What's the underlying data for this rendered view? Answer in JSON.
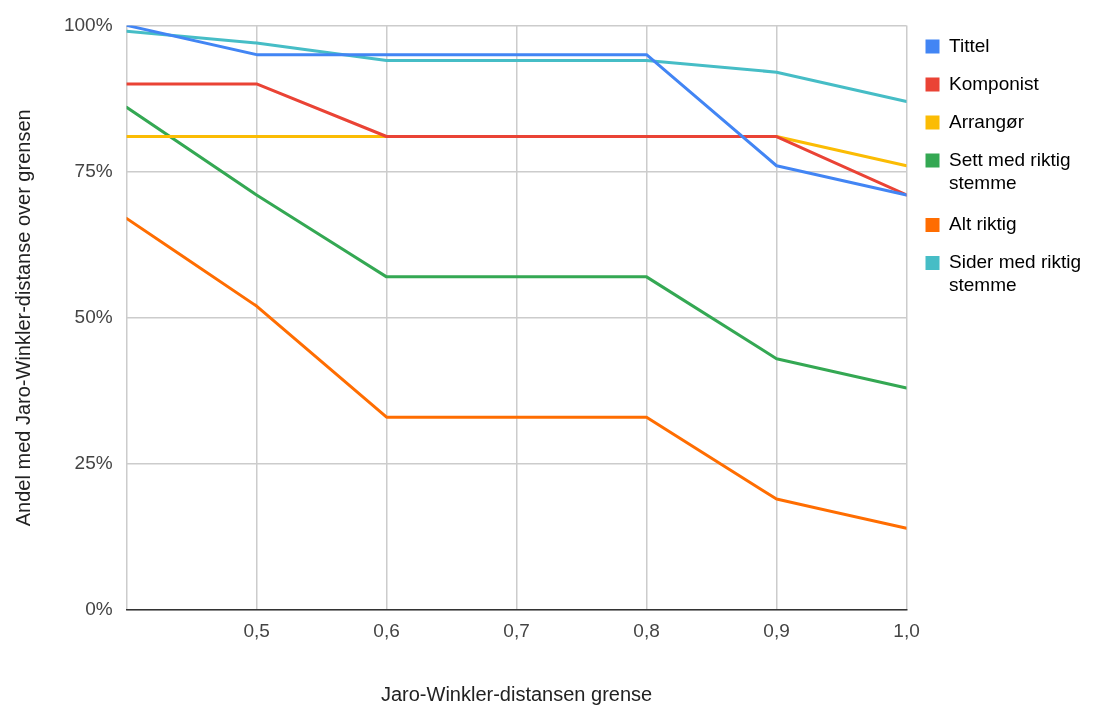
{
  "chart_data": {
    "type": "line",
    "xlabel": "Jaro-Winkler-distansen grense",
    "ylabel": "Andel med Jaro-Winkler-distanse over grensen",
    "x": [
      0.4,
      0.5,
      0.6,
      0.7,
      0.8,
      0.9,
      1.0
    ],
    "series": [
      {
        "name": "Tittel",
        "color": "#4285f4",
        "values": [
          100,
          95,
          95,
          95,
          95,
          76,
          71
        ]
      },
      {
        "name": "Komponist",
        "color": "#ea4335",
        "values": [
          90,
          90,
          81,
          81,
          81,
          81,
          71
        ]
      },
      {
        "name": "Arrangør",
        "color": "#fbbc04",
        "values": [
          81,
          81,
          81,
          81,
          81,
          81,
          76
        ]
      },
      {
        "name": "Sett med riktig stemme",
        "color": "#34a853",
        "values": [
          86,
          71,
          57,
          57,
          57,
          43,
          38
        ]
      },
      {
        "name": "Alt riktig",
        "color": "#ff6d01",
        "values": [
          67,
          52,
          33,
          33,
          33,
          19,
          14
        ]
      },
      {
        "name": "Sider med riktig stemme",
        "color": "#46bdc6",
        "values": [
          99,
          97,
          94,
          94,
          94,
          92,
          87
        ]
      }
    ],
    "xlim": [
      0.4,
      1.0
    ],
    "xticks": [
      {
        "value": 0.4,
        "label": null
      },
      {
        "value": 0.5,
        "label": "0,5"
      },
      {
        "value": 0.6,
        "label": "0,6"
      },
      {
        "value": 0.7,
        "label": "0,7"
      },
      {
        "value": 0.8,
        "label": "0,8"
      },
      {
        "value": 0.9,
        "label": "0,9"
      },
      {
        "value": 1.0,
        "label": "1,0"
      }
    ],
    "ylim": [
      0,
      100
    ],
    "yticks": [
      {
        "value": 0,
        "label": "0%"
      },
      {
        "value": 25,
        "label": "25%"
      },
      {
        "value": 50,
        "label": "50%"
      },
      {
        "value": 75,
        "label": "75%"
      },
      {
        "value": 100,
        "label": "100%"
      }
    ],
    "grid": true,
    "legend": "top right",
    "marker": "none",
    "line_style": "solid"
  }
}
